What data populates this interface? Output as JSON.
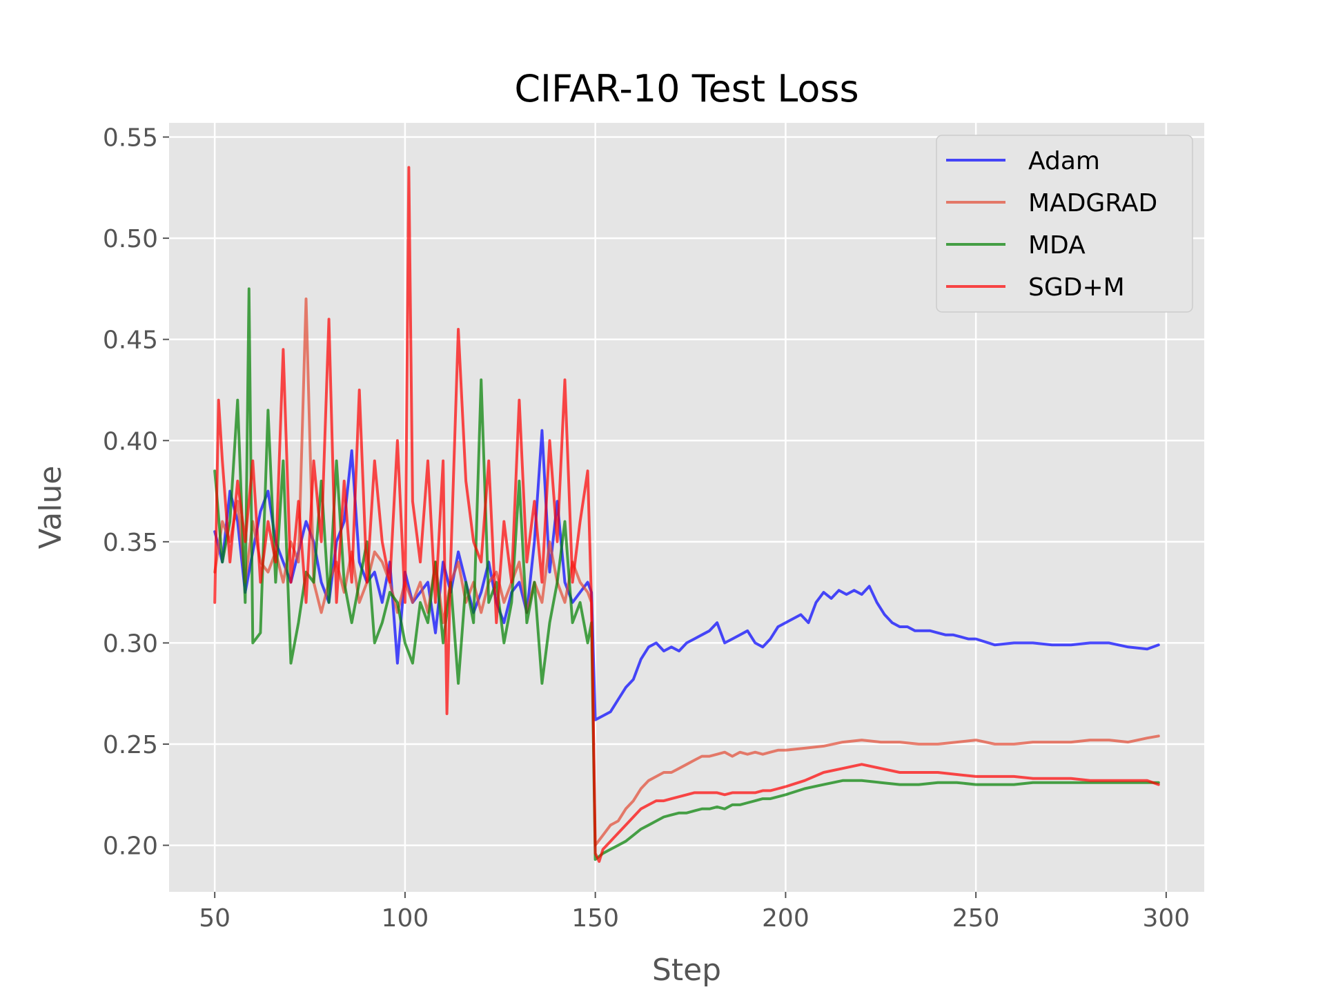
{
  "chart_data": {
    "type": "line",
    "title": "CIFAR-10 Test Loss",
    "xlabel": "Step",
    "ylabel": "Value",
    "xlim": [
      38,
      310
    ],
    "ylim": [
      0.177,
      0.557
    ],
    "xticks": [
      50,
      100,
      150,
      200,
      250,
      300
    ],
    "yticks": [
      0.2,
      0.25,
      0.3,
      0.35,
      0.4,
      0.45,
      0.5,
      0.55
    ],
    "xtick_labels": [
      "50",
      "100",
      "150",
      "200",
      "250",
      "300"
    ],
    "ytick_labels": [
      "0.20",
      "0.25",
      "0.30",
      "0.35",
      "0.40",
      "0.45",
      "0.50",
      "0.55"
    ],
    "grid": true,
    "legend_position": "top-right",
    "background": "#E5E5E5",
    "series": [
      {
        "name": "Adam",
        "color": "#0000FF",
        "x": [
          50,
          52,
          54,
          56,
          58,
          60,
          62,
          64,
          66,
          68,
          70,
          72,
          74,
          76,
          78,
          80,
          82,
          84,
          86,
          88,
          90,
          92,
          94,
          96,
          98,
          100,
          102,
          104,
          106,
          108,
          110,
          112,
          114,
          116,
          118,
          120,
          122,
          124,
          126,
          128,
          130,
          132,
          134,
          136,
          138,
          140,
          142,
          144,
          146,
          148,
          149,
          150,
          152,
          154,
          156,
          158,
          160,
          162,
          164,
          166,
          168,
          170,
          172,
          174,
          176,
          178,
          180,
          182,
          184,
          186,
          188,
          190,
          192,
          194,
          196,
          198,
          200,
          202,
          204,
          206,
          208,
          210,
          212,
          214,
          216,
          218,
          220,
          222,
          224,
          226,
          228,
          230,
          232,
          234,
          236,
          238,
          240,
          242,
          244,
          246,
          248,
          250,
          255,
          260,
          265,
          270,
          275,
          280,
          285,
          290,
          295,
          298
        ],
        "y": [
          0.355,
          0.34,
          0.375,
          0.36,
          0.325,
          0.345,
          0.365,
          0.375,
          0.35,
          0.34,
          0.33,
          0.345,
          0.36,
          0.35,
          0.33,
          0.32,
          0.35,
          0.36,
          0.395,
          0.34,
          0.33,
          0.335,
          0.32,
          0.34,
          0.29,
          0.335,
          0.32,
          0.325,
          0.33,
          0.305,
          0.34,
          0.325,
          0.345,
          0.33,
          0.315,
          0.325,
          0.34,
          0.32,
          0.31,
          0.325,
          0.33,
          0.315,
          0.35,
          0.405,
          0.335,
          0.37,
          0.33,
          0.32,
          0.325,
          0.33,
          0.325,
          0.262,
          0.264,
          0.266,
          0.272,
          0.278,
          0.282,
          0.292,
          0.298,
          0.3,
          0.296,
          0.298,
          0.296,
          0.3,
          0.302,
          0.304,
          0.306,
          0.31,
          0.3,
          0.302,
          0.304,
          0.306,
          0.3,
          0.298,
          0.302,
          0.308,
          0.31,
          0.312,
          0.314,
          0.31,
          0.32,
          0.325,
          0.322,
          0.326,
          0.324,
          0.326,
          0.324,
          0.328,
          0.32,
          0.314,
          0.31,
          0.308,
          0.308,
          0.306,
          0.306,
          0.306,
          0.305,
          0.304,
          0.304,
          0.303,
          0.302,
          0.302,
          0.299,
          0.3,
          0.3,
          0.299,
          0.299,
          0.3,
          0.3,
          0.298,
          0.297,
          0.299
        ]
      },
      {
        "name": "MADGRAD",
        "color": "#E24A33",
        "x": [
          50,
          52,
          54,
          56,
          58,
          60,
          62,
          64,
          66,
          68,
          70,
          72,
          74,
          76,
          78,
          80,
          82,
          84,
          86,
          88,
          90,
          92,
          94,
          96,
          98,
          100,
          102,
          104,
          106,
          108,
          110,
          112,
          114,
          116,
          118,
          120,
          122,
          124,
          126,
          128,
          130,
          132,
          134,
          136,
          138,
          140,
          142,
          144,
          146,
          148,
          149,
          150,
          152,
          154,
          156,
          158,
          160,
          162,
          164,
          166,
          168,
          170,
          172,
          174,
          176,
          178,
          180,
          182,
          184,
          186,
          188,
          190,
          192,
          194,
          196,
          198,
          200,
          205,
          210,
          215,
          220,
          225,
          230,
          235,
          240,
          245,
          250,
          255,
          260,
          265,
          270,
          275,
          280,
          285,
          290,
          295,
          298
        ],
        "y": [
          0.335,
          0.36,
          0.35,
          0.37,
          0.33,
          0.36,
          0.34,
          0.335,
          0.345,
          0.33,
          0.35,
          0.34,
          0.47,
          0.33,
          0.315,
          0.33,
          0.34,
          0.325,
          0.345,
          0.32,
          0.33,
          0.345,
          0.34,
          0.33,
          0.315,
          0.33,
          0.32,
          0.33,
          0.315,
          0.34,
          0.31,
          0.33,
          0.34,
          0.32,
          0.33,
          0.315,
          0.33,
          0.335,
          0.32,
          0.33,
          0.34,
          0.315,
          0.33,
          0.32,
          0.35,
          0.33,
          0.32,
          0.34,
          0.33,
          0.325,
          0.32,
          0.2,
          0.205,
          0.21,
          0.212,
          0.218,
          0.222,
          0.228,
          0.232,
          0.234,
          0.236,
          0.236,
          0.238,
          0.24,
          0.242,
          0.244,
          0.244,
          0.245,
          0.246,
          0.244,
          0.246,
          0.245,
          0.246,
          0.245,
          0.246,
          0.247,
          0.247,
          0.248,
          0.249,
          0.251,
          0.252,
          0.251,
          0.251,
          0.25,
          0.25,
          0.251,
          0.252,
          0.25,
          0.25,
          0.251,
          0.251,
          0.251,
          0.252,
          0.252,
          0.251,
          0.253,
          0.254
        ]
      },
      {
        "name": "MDA",
        "color": "#008000",
        "x": [
          50,
          52,
          54,
          56,
          58,
          59,
          60,
          62,
          64,
          66,
          68,
          70,
          72,
          74,
          76,
          78,
          80,
          82,
          84,
          86,
          88,
          90,
          92,
          94,
          96,
          98,
          100,
          102,
          104,
          106,
          108,
          110,
          112,
          114,
          116,
          118,
          120,
          122,
          124,
          126,
          128,
          130,
          132,
          134,
          136,
          138,
          140,
          142,
          144,
          146,
          148,
          149,
          150,
          152,
          154,
          156,
          158,
          160,
          162,
          164,
          166,
          168,
          170,
          172,
          174,
          176,
          178,
          180,
          182,
          184,
          186,
          188,
          190,
          192,
          194,
          196,
          198,
          200,
          205,
          210,
          215,
          220,
          225,
          230,
          235,
          240,
          245,
          250,
          255,
          260,
          265,
          270,
          275,
          280,
          285,
          290,
          295,
          298
        ],
        "y": [
          0.385,
          0.34,
          0.36,
          0.42,
          0.32,
          0.475,
          0.3,
          0.305,
          0.415,
          0.33,
          0.39,
          0.29,
          0.31,
          0.335,
          0.33,
          0.38,
          0.32,
          0.39,
          0.33,
          0.31,
          0.33,
          0.35,
          0.3,
          0.31,
          0.325,
          0.32,
          0.3,
          0.29,
          0.32,
          0.31,
          0.34,
          0.3,
          0.33,
          0.28,
          0.33,
          0.31,
          0.43,
          0.32,
          0.33,
          0.3,
          0.32,
          0.38,
          0.31,
          0.33,
          0.28,
          0.31,
          0.33,
          0.36,
          0.31,
          0.32,
          0.3,
          0.31,
          0.193,
          0.196,
          0.198,
          0.2,
          0.202,
          0.205,
          0.208,
          0.21,
          0.212,
          0.214,
          0.215,
          0.216,
          0.216,
          0.217,
          0.218,
          0.218,
          0.219,
          0.218,
          0.22,
          0.22,
          0.221,
          0.222,
          0.223,
          0.223,
          0.224,
          0.225,
          0.228,
          0.23,
          0.232,
          0.232,
          0.231,
          0.23,
          0.23,
          0.231,
          0.231,
          0.23,
          0.23,
          0.23,
          0.231,
          0.231,
          0.231,
          0.231,
          0.231,
          0.231,
          0.231,
          0.231
        ]
      },
      {
        "name": "SGD+M",
        "color": "#FF0000",
        "x": [
          50,
          51,
          52,
          54,
          56,
          58,
          60,
          62,
          64,
          66,
          68,
          70,
          72,
          74,
          76,
          78,
          80,
          82,
          84,
          86,
          88,
          90,
          92,
          94,
          96,
          98,
          100,
          101,
          102,
          104,
          106,
          108,
          110,
          111,
          112,
          114,
          116,
          118,
          120,
          122,
          124,
          126,
          128,
          130,
          132,
          134,
          136,
          138,
          140,
          142,
          144,
          146,
          148,
          149,
          150,
          151,
          152,
          154,
          156,
          158,
          160,
          162,
          164,
          166,
          168,
          170,
          172,
          174,
          176,
          178,
          180,
          182,
          184,
          186,
          188,
          190,
          192,
          194,
          196,
          198,
          200,
          205,
          210,
          215,
          220,
          225,
          230,
          235,
          240,
          245,
          250,
          255,
          260,
          265,
          270,
          275,
          280,
          285,
          290,
          295,
          298
        ],
        "y": [
          0.32,
          0.42,
          0.39,
          0.34,
          0.38,
          0.35,
          0.39,
          0.33,
          0.36,
          0.34,
          0.445,
          0.33,
          0.37,
          0.32,
          0.39,
          0.35,
          0.46,
          0.32,
          0.38,
          0.33,
          0.425,
          0.33,
          0.39,
          0.35,
          0.33,
          0.4,
          0.32,
          0.535,
          0.37,
          0.34,
          0.39,
          0.32,
          0.39,
          0.265,
          0.34,
          0.455,
          0.38,
          0.35,
          0.34,
          0.39,
          0.31,
          0.36,
          0.33,
          0.42,
          0.34,
          0.37,
          0.33,
          0.4,
          0.35,
          0.43,
          0.33,
          0.36,
          0.385,
          0.32,
          0.196,
          0.192,
          0.198,
          0.202,
          0.206,
          0.21,
          0.214,
          0.218,
          0.22,
          0.222,
          0.222,
          0.223,
          0.224,
          0.225,
          0.226,
          0.226,
          0.226,
          0.226,
          0.225,
          0.226,
          0.226,
          0.226,
          0.226,
          0.227,
          0.227,
          0.228,
          0.229,
          0.232,
          0.236,
          0.238,
          0.24,
          0.238,
          0.236,
          0.236,
          0.236,
          0.235,
          0.234,
          0.234,
          0.234,
          0.233,
          0.233,
          0.233,
          0.232,
          0.232,
          0.232,
          0.232,
          0.23
        ]
      }
    ]
  }
}
